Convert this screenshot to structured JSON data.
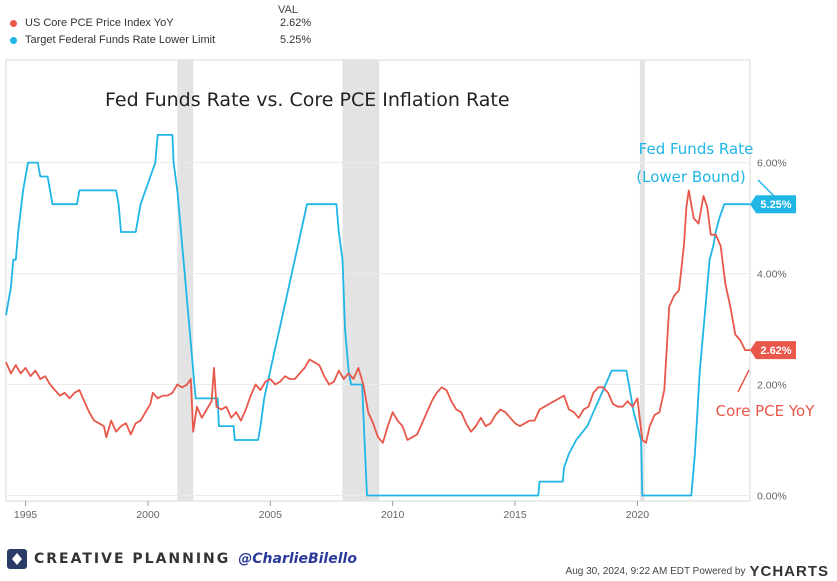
{
  "legend": {
    "val_header": "VAL",
    "items": [
      {
        "name": "US Core PCE Price Index YoY",
        "value": "2.62%",
        "color": "#e8574a"
      },
      {
        "name": "Target Federal Funds Rate Lower Limit",
        "value": "5.25%",
        "color": "#1fb6e6"
      }
    ]
  },
  "footer": {
    "brand": "CREATIVE PLANNING",
    "handle": "@CharlieBilello",
    "timestamp": "Aug 30, 2024, 9:22 AM EDT Powered by",
    "provider": "YCHARTS"
  },
  "chart_data": {
    "type": "line",
    "title": "Fed Funds Rate vs. Core PCE Inflation Rate",
    "xlabel": "",
    "ylabel": "",
    "xlim": [
      1994.2,
      2024.6
    ],
    "ylim": [
      -0.1,
      7.85
    ],
    "x_ticks": [
      "1995",
      "2000",
      "2005",
      "2010",
      "2015",
      "2020"
    ],
    "y_ticks": [
      "0.00%",
      "2.00%",
      "4.00%",
      "6.00%"
    ],
    "y_tick_values": [
      0,
      2,
      4,
      6
    ],
    "grid": true,
    "recessions": [
      [
        2001.2,
        2001.85
      ],
      [
        2007.95,
        2009.45
      ],
      [
        2020.1,
        2020.3
      ]
    ],
    "series": [
      {
        "name": "Target Federal Funds Rate Lower Limit",
        "color": "#1fb6e6",
        "end_label": "5.25%",
        "annotation": [
          "Fed Funds Rate",
          "(Lower Bound)"
        ],
        "points": [
          [
            1994.2,
            3.25
          ],
          [
            1994.4,
            3.75
          ],
          [
            1994.5,
            4.25
          ],
          [
            1994.6,
            4.25
          ],
          [
            1994.7,
            4.75
          ],
          [
            1994.9,
            5.5
          ],
          [
            1995.1,
            6.0
          ],
          [
            1995.5,
            6.0
          ],
          [
            1995.6,
            5.75
          ],
          [
            1995.9,
            5.75
          ],
          [
            1996.1,
            5.25
          ],
          [
            1997.1,
            5.25
          ],
          [
            1997.2,
            5.5
          ],
          [
            1998.7,
            5.5
          ],
          [
            1998.8,
            5.25
          ],
          [
            1998.9,
            4.75
          ],
          [
            1999.5,
            4.75
          ],
          [
            1999.6,
            5.0
          ],
          [
            1999.7,
            5.25
          ],
          [
            1999.9,
            5.5
          ],
          [
            2000.1,
            5.75
          ],
          [
            2000.3,
            6.0
          ],
          [
            2000.4,
            6.5
          ],
          [
            2001.0,
            6.5
          ],
          [
            2001.05,
            6.0
          ],
          [
            2001.2,
            5.5
          ],
          [
            2001.3,
            5.0
          ],
          [
            2001.4,
            4.5
          ],
          [
            2001.5,
            4.0
          ],
          [
            2001.6,
            3.5
          ],
          [
            2001.7,
            3.0
          ],
          [
            2001.8,
            2.5
          ],
          [
            2001.9,
            2.0
          ],
          [
            2001.95,
            1.75
          ],
          [
            2002.85,
            1.75
          ],
          [
            2002.9,
            1.25
          ],
          [
            2003.5,
            1.25
          ],
          [
            2003.55,
            1.0
          ],
          [
            2004.5,
            1.0
          ],
          [
            2004.6,
            1.25
          ],
          [
            2004.75,
            1.75
          ],
          [
            2005.0,
            2.25
          ],
          [
            2005.25,
            2.75
          ],
          [
            2005.5,
            3.25
          ],
          [
            2005.75,
            3.75
          ],
          [
            2006.0,
            4.25
          ],
          [
            2006.25,
            4.75
          ],
          [
            2006.5,
            5.25
          ],
          [
            2007.7,
            5.25
          ],
          [
            2007.8,
            4.75
          ],
          [
            2007.95,
            4.25
          ],
          [
            2008.05,
            3.0
          ],
          [
            2008.2,
            2.25
          ],
          [
            2008.3,
            2.0
          ],
          [
            2008.75,
            2.0
          ],
          [
            2008.8,
            1.5
          ],
          [
            2008.85,
            1.0
          ],
          [
            2008.95,
            0.0
          ],
          [
            2015.95,
            0.0
          ],
          [
            2016.0,
            0.25
          ],
          [
            2016.95,
            0.25
          ],
          [
            2017.0,
            0.5
          ],
          [
            2017.2,
            0.75
          ],
          [
            2017.5,
            1.0
          ],
          [
            2017.95,
            1.25
          ],
          [
            2018.2,
            1.5
          ],
          [
            2018.45,
            1.75
          ],
          [
            2018.7,
            2.0
          ],
          [
            2018.95,
            2.25
          ],
          [
            2019.55,
            2.25
          ],
          [
            2019.65,
            2.0
          ],
          [
            2019.75,
            1.75
          ],
          [
            2019.85,
            1.5
          ],
          [
            2020.15,
            1.0
          ],
          [
            2020.2,
            0.0
          ],
          [
            2022.2,
            0.0
          ],
          [
            2022.25,
            0.25
          ],
          [
            2022.35,
            0.75
          ],
          [
            2022.45,
            1.5
          ],
          [
            2022.55,
            2.25
          ],
          [
            2022.7,
            3.0
          ],
          [
            2022.85,
            3.75
          ],
          [
            2022.95,
            4.25
          ],
          [
            2023.1,
            4.5
          ],
          [
            2023.2,
            4.75
          ],
          [
            2023.35,
            5.0
          ],
          [
            2023.55,
            5.25
          ],
          [
            2024.6,
            5.25
          ]
        ]
      },
      {
        "name": "US Core PCE Price Index YoY",
        "color": "#e8574a",
        "end_label": "2.62%",
        "annotation": [
          "Core PCE YoY"
        ],
        "points": [
          [
            1994.2,
            2.4
          ],
          [
            1994.4,
            2.2
          ],
          [
            1994.6,
            2.35
          ],
          [
            1994.8,
            2.2
          ],
          [
            1995.0,
            2.3
          ],
          [
            1995.2,
            2.15
          ],
          [
            1995.4,
            2.25
          ],
          [
            1995.6,
            2.1
          ],
          [
            1995.8,
            2.15
          ],
          [
            1996.0,
            2.0
          ],
          [
            1996.2,
            1.9
          ],
          [
            1996.4,
            1.8
          ],
          [
            1996.6,
            1.85
          ],
          [
            1996.8,
            1.75
          ],
          [
            1997.0,
            1.85
          ],
          [
            1997.2,
            1.9
          ],
          [
            1997.4,
            1.7
          ],
          [
            1997.6,
            1.5
          ],
          [
            1997.8,
            1.35
          ],
          [
            1998.0,
            1.3
          ],
          [
            1998.2,
            1.25
          ],
          [
            1998.3,
            1.05
          ],
          [
            1998.5,
            1.35
          ],
          [
            1998.7,
            1.15
          ],
          [
            1998.9,
            1.25
          ],
          [
            1999.1,
            1.3
          ],
          [
            1999.3,
            1.1
          ],
          [
            1999.5,
            1.3
          ],
          [
            1999.7,
            1.35
          ],
          [
            1999.9,
            1.5
          ],
          [
            2000.1,
            1.65
          ],
          [
            2000.2,
            1.85
          ],
          [
            2000.4,
            1.75
          ],
          [
            2000.6,
            1.8
          ],
          [
            2000.8,
            1.8
          ],
          [
            2001.0,
            1.85
          ],
          [
            2001.2,
            2.0
          ],
          [
            2001.4,
            1.95
          ],
          [
            2001.6,
            2.0
          ],
          [
            2001.75,
            2.1
          ],
          [
            2001.85,
            1.15
          ],
          [
            2002.0,
            1.6
          ],
          [
            2002.2,
            1.4
          ],
          [
            2002.4,
            1.55
          ],
          [
            2002.6,
            1.7
          ],
          [
            2002.7,
            2.3
          ],
          [
            2002.8,
            1.6
          ],
          [
            2003.0,
            1.55
          ],
          [
            2003.2,
            1.6
          ],
          [
            2003.4,
            1.4
          ],
          [
            2003.6,
            1.5
          ],
          [
            2003.8,
            1.35
          ],
          [
            2004.0,
            1.55
          ],
          [
            2004.2,
            1.8
          ],
          [
            2004.4,
            2.0
          ],
          [
            2004.6,
            1.9
          ],
          [
            2004.8,
            2.05
          ],
          [
            2005.0,
            2.1
          ],
          [
            2005.2,
            2.0
          ],
          [
            2005.4,
            2.05
          ],
          [
            2005.6,
            2.15
          ],
          [
            2005.8,
            2.1
          ],
          [
            2006.0,
            2.1
          ],
          [
            2006.2,
            2.2
          ],
          [
            2006.4,
            2.3
          ],
          [
            2006.6,
            2.45
          ],
          [
            2006.8,
            2.4
          ],
          [
            2007.0,
            2.35
          ],
          [
            2007.2,
            2.15
          ],
          [
            2007.4,
            2.0
          ],
          [
            2007.6,
            2.05
          ],
          [
            2007.8,
            2.25
          ],
          [
            2008.0,
            2.1
          ],
          [
            2008.2,
            2.2
          ],
          [
            2008.4,
            2.1
          ],
          [
            2008.6,
            2.3
          ],
          [
            2008.8,
            2.0
          ],
          [
            2009.0,
            1.5
          ],
          [
            2009.2,
            1.3
          ],
          [
            2009.4,
            1.05
          ],
          [
            2009.6,
            0.95
          ],
          [
            2009.8,
            1.25
          ],
          [
            2010.0,
            1.5
          ],
          [
            2010.2,
            1.35
          ],
          [
            2010.4,
            1.25
          ],
          [
            2010.6,
            1.0
          ],
          [
            2010.8,
            1.05
          ],
          [
            2011.0,
            1.1
          ],
          [
            2011.2,
            1.3
          ],
          [
            2011.4,
            1.5
          ],
          [
            2011.6,
            1.7
          ],
          [
            2011.8,
            1.85
          ],
          [
            2012.0,
            1.95
          ],
          [
            2012.2,
            1.9
          ],
          [
            2012.4,
            1.7
          ],
          [
            2012.6,
            1.55
          ],
          [
            2012.8,
            1.5
          ],
          [
            2013.0,
            1.3
          ],
          [
            2013.2,
            1.15
          ],
          [
            2013.4,
            1.25
          ],
          [
            2013.6,
            1.4
          ],
          [
            2013.8,
            1.25
          ],
          [
            2014.0,
            1.3
          ],
          [
            2014.2,
            1.45
          ],
          [
            2014.4,
            1.55
          ],
          [
            2014.6,
            1.5
          ],
          [
            2014.8,
            1.4
          ],
          [
            2015.0,
            1.3
          ],
          [
            2015.2,
            1.25
          ],
          [
            2015.4,
            1.3
          ],
          [
            2015.6,
            1.35
          ],
          [
            2015.8,
            1.35
          ],
          [
            2016.0,
            1.55
          ],
          [
            2016.2,
            1.6
          ],
          [
            2016.4,
            1.65
          ],
          [
            2016.6,
            1.7
          ],
          [
            2016.8,
            1.75
          ],
          [
            2017.0,
            1.8
          ],
          [
            2017.2,
            1.55
          ],
          [
            2017.4,
            1.5
          ],
          [
            2017.6,
            1.4
          ],
          [
            2017.8,
            1.55
          ],
          [
            2018.0,
            1.6
          ],
          [
            2018.2,
            1.85
          ],
          [
            2018.4,
            1.95
          ],
          [
            2018.6,
            1.95
          ],
          [
            2018.8,
            1.85
          ],
          [
            2019.0,
            1.65
          ],
          [
            2019.2,
            1.6
          ],
          [
            2019.4,
            1.6
          ],
          [
            2019.6,
            1.7
          ],
          [
            2019.8,
            1.6
          ],
          [
            2020.0,
            1.75
          ],
          [
            2020.2,
            1.0
          ],
          [
            2020.35,
            0.95
          ],
          [
            2020.5,
            1.25
          ],
          [
            2020.7,
            1.45
          ],
          [
            2020.9,
            1.5
          ],
          [
            2021.1,
            1.9
          ],
          [
            2021.3,
            3.4
          ],
          [
            2021.5,
            3.6
          ],
          [
            2021.7,
            3.7
          ],
          [
            2021.9,
            4.5
          ],
          [
            2022.0,
            5.2
          ],
          [
            2022.1,
            5.5
          ],
          [
            2022.3,
            5.0
          ],
          [
            2022.5,
            4.9
          ],
          [
            2022.7,
            5.4
          ],
          [
            2022.85,
            5.2
          ],
          [
            2023.0,
            4.7
          ],
          [
            2023.2,
            4.7
          ],
          [
            2023.4,
            4.5
          ],
          [
            2023.6,
            3.8
          ],
          [
            2023.8,
            3.4
          ],
          [
            2024.0,
            2.9
          ],
          [
            2024.2,
            2.8
          ],
          [
            2024.4,
            2.62
          ],
          [
            2024.6,
            2.62
          ]
        ]
      }
    ]
  }
}
